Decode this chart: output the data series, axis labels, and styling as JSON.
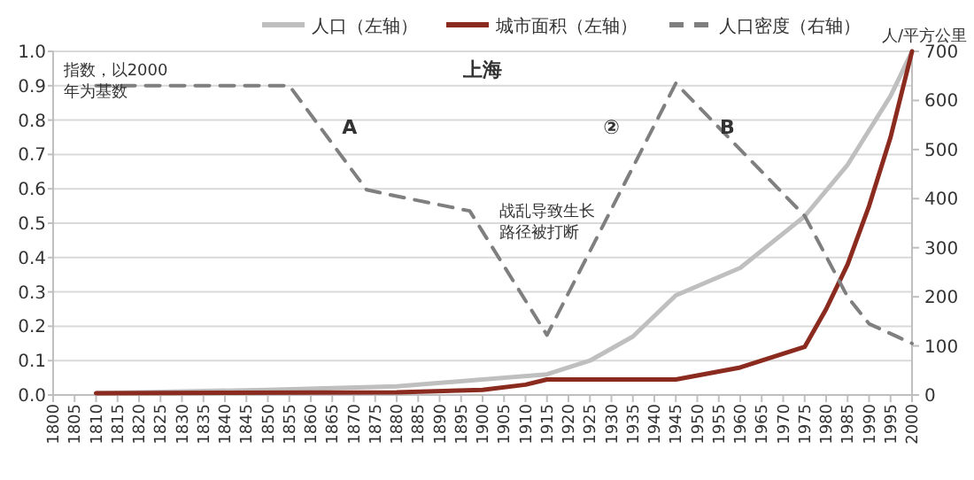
{
  "chart_data": {
    "type": "line",
    "title": "上海",
    "y2label": "人/平方公里",
    "legend": "top",
    "grid": "y",
    "marker": "none",
    "xlim": [
      1800,
      2000
    ],
    "xticks": [
      {
        "value": 1800,
        "label": "1800"
      },
      {
        "value": 1805,
        "label": "1805"
      },
      {
        "value": 1810,
        "label": "1810"
      },
      {
        "value": 1815,
        "label": "1815"
      },
      {
        "value": 1820,
        "label": "1820"
      },
      {
        "value": 1825,
        "label": "1825"
      },
      {
        "value": 1830,
        "label": "1830"
      },
      {
        "value": 1835,
        "label": "1835"
      },
      {
        "value": 1840,
        "label": "1840"
      },
      {
        "value": 1845,
        "label": "1845"
      },
      {
        "value": 1850,
        "label": "1850"
      },
      {
        "value": 1855,
        "label": "1855"
      },
      {
        "value": 1860,
        "label": "1860"
      },
      {
        "value": 1865,
        "label": "1865"
      },
      {
        "value": 1870,
        "label": "1870"
      },
      {
        "value": 1875,
        "label": "1875"
      },
      {
        "value": 1880,
        "label": "1880"
      },
      {
        "value": 1885,
        "label": "1885"
      },
      {
        "value": 1890,
        "label": "1890"
      },
      {
        "value": 1895,
        "label": "1895"
      },
      {
        "value": 1900,
        "label": "1900"
      },
      {
        "value": 1905,
        "label": "1905"
      },
      {
        "value": 1910,
        "label": "1910"
      },
      {
        "value": 1915,
        "label": "1915"
      },
      {
        "value": 1920,
        "label": "1920"
      },
      {
        "value": 1925,
        "label": "1925"
      },
      {
        "value": 1930,
        "label": "1930"
      },
      {
        "value": 1935,
        "label": "1935"
      },
      {
        "value": 1940,
        "label": "1940"
      },
      {
        "value": 1945,
        "label": "1945"
      },
      {
        "value": 1950,
        "label": "1950"
      },
      {
        "value": 1955,
        "label": "1955"
      },
      {
        "value": 1960,
        "label": "1960"
      },
      {
        "value": 1965,
        "label": "1965"
      },
      {
        "value": 1970,
        "label": "1970"
      },
      {
        "value": 1975,
        "label": "1975"
      },
      {
        "value": 1980,
        "label": "1980"
      },
      {
        "value": 1985,
        "label": "1985"
      },
      {
        "value": 1990,
        "label": "1990"
      },
      {
        "value": 1995,
        "label": "1995"
      },
      {
        "value": 2000,
        "label": "2000"
      }
    ],
    "ylim": [
      0,
      1
    ],
    "yticks": [
      {
        "value": 0,
        "label": "0.0"
      },
      {
        "value": 0.1,
        "label": "0.1"
      },
      {
        "value": 0.2,
        "label": "0.2"
      },
      {
        "value": 0.3,
        "label": "0.3"
      },
      {
        "value": 0.4,
        "label": "0.4"
      },
      {
        "value": 0.5,
        "label": "0.5"
      },
      {
        "value": 0.6,
        "label": "0.6"
      },
      {
        "value": 0.7,
        "label": "0.7"
      },
      {
        "value": 0.8,
        "label": "0.8"
      },
      {
        "value": 0.9,
        "label": "0.9"
      },
      {
        "value": 1,
        "label": "1.0"
      }
    ],
    "y2lim": [
      0,
      700
    ],
    "y2ticks": [
      0,
      100,
      200,
      300,
      400,
      500,
      600,
      700
    ],
    "series": [
      {
        "name": "人口（左轴）",
        "color": "#bfbfbf",
        "line_style": "solid",
        "x": [
          1810,
          1850,
          1880,
          1900,
          1915,
          1925,
          1935,
          1945,
          1960,
          1975,
          1985,
          1995,
          2000
        ],
        "values": [
          0.005,
          0.015,
          0.025,
          0.045,
          0.06,
          0.1,
          0.17,
          0.29,
          0.37,
          0.52,
          0.67,
          0.87,
          1.0
        ]
      },
      {
        "name": "城市面积（左轴）",
        "color": "#8b2a1e",
        "line_style": "solid",
        "x": [
          1810,
          1880,
          1900,
          1910,
          1915,
          1945,
          1960,
          1970,
          1975,
          1980,
          1985,
          1990,
          1995,
          2000
        ],
        "values": [
          0.005,
          0.008,
          0.015,
          0.03,
          0.045,
          0.045,
          0.08,
          0.12,
          0.14,
          0.25,
          0.38,
          0.55,
          0.75,
          1.0
        ]
      },
      {
        "name": "人口密度（右轴）",
        "color": "#7f7f7f",
        "line_style": "dashed",
        "axis": "y2",
        "x": [
          1810,
          1855,
          1873,
          1880,
          1897,
          1915,
          1945,
          1975,
          1985,
          1990,
          2000
        ],
        "values": [
          630,
          630,
          418,
          405,
          375,
          122,
          635,
          365,
          200,
          145,
          105
        ]
      }
    ],
    "annotations": [
      "指数，以2000年为基数",
      "A",
      "②",
      "B",
      "战乱导致生长路径被打断"
    ]
  }
}
